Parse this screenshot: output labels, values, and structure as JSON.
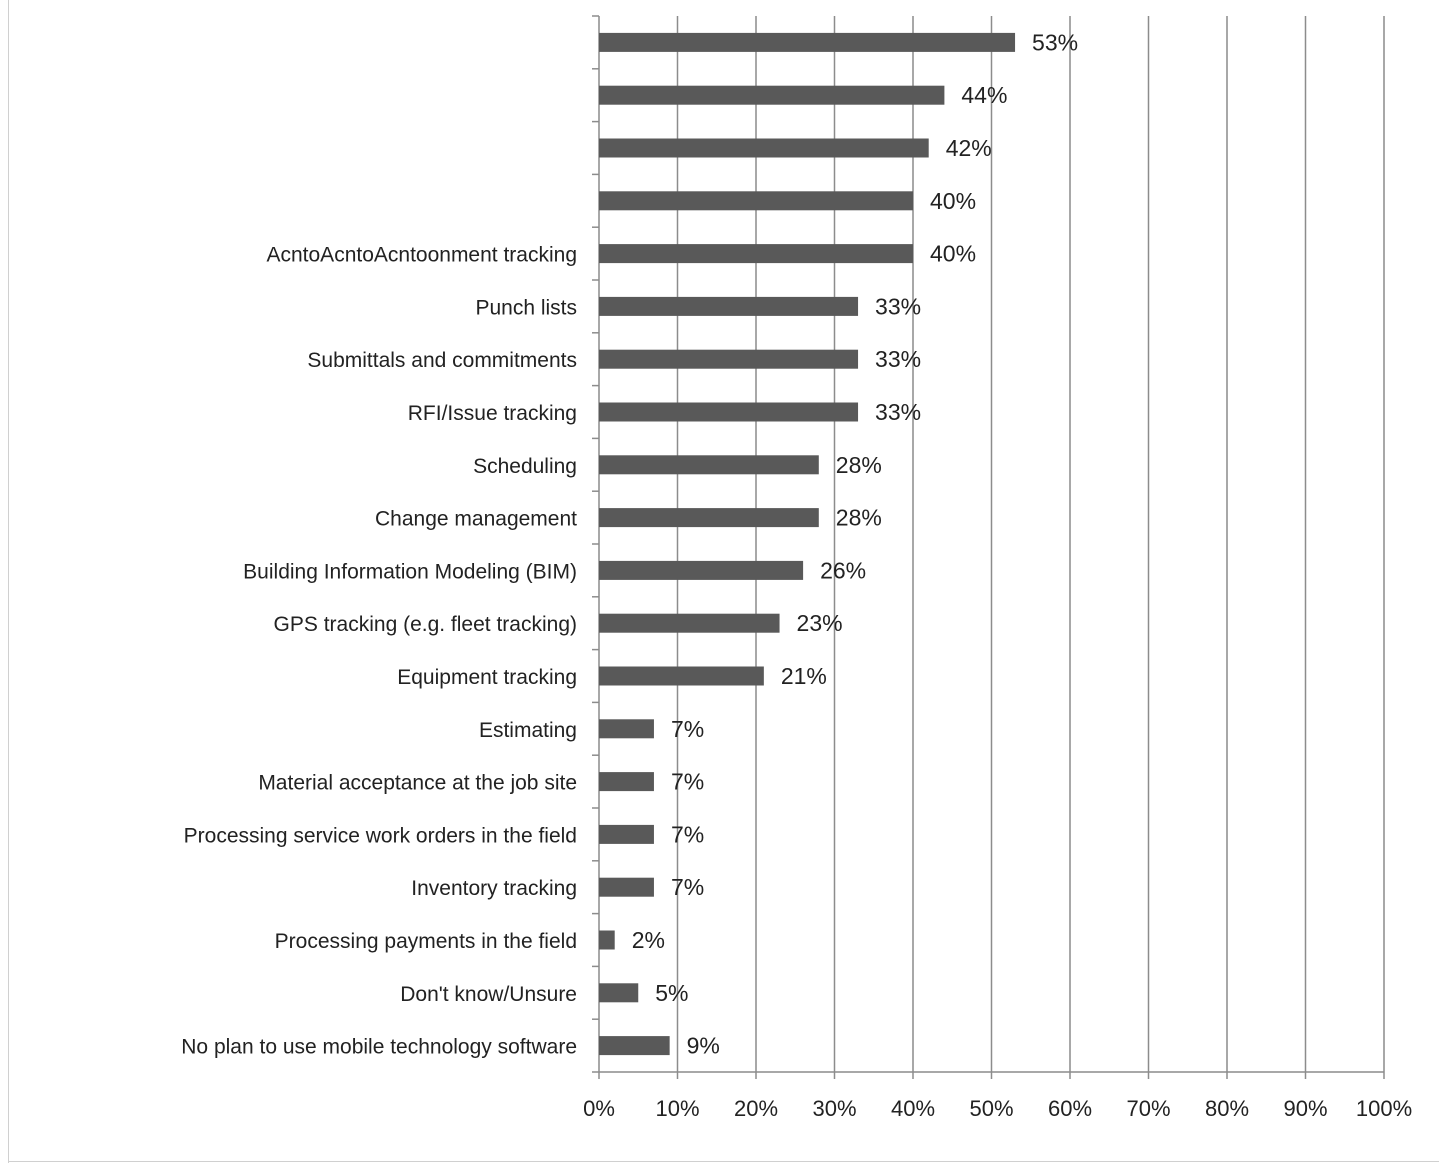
{
  "chart_data": {
    "type": "bar",
    "orientation": "horizontal",
    "title": "",
    "xlabel": "",
    "ylabel": "",
    "xlim": [
      0,
      100
    ],
    "x_ticks": [
      "0%",
      "10%",
      "20%",
      "30%",
      "40%",
      "50%",
      "60%",
      "70%",
      "80%",
      "90%",
      "100%"
    ],
    "grid": true,
    "bar_color": "#595959",
    "categories": [
      "",
      "",
      "",
      "",
      "AcntoAcntoAcntoonment tracking",
      "Punch lists",
      "Submittals and commitments",
      "RFI/Issue tracking",
      "Scheduling",
      "Change management",
      "Building Information Modeling (BIM)",
      "GPS tracking (e.g. fleet tracking)",
      "Equipment tracking",
      "Estimating",
      "Material acceptance at the job site",
      "Processing service work orders in the field",
      "Inventory tracking",
      "Processing payments in the field",
      "Don't know/Unsure",
      "No plan to use mobile technology software"
    ],
    "values": [
      53,
      44,
      42,
      40,
      40,
      33,
      33,
      33,
      28,
      28,
      26,
      23,
      21,
      7,
      7,
      7,
      7,
      2,
      5,
      9
    ],
    "data_labels": [
      "53%",
      "44%",
      "42%",
      "40%",
      "40%",
      "33%",
      "33%",
      "33%",
      "28%",
      "28%",
      "26%",
      "23%",
      "21%",
      "7%",
      "7%",
      "7%",
      "7%",
      "2%",
      "5%",
      "9%"
    ]
  }
}
